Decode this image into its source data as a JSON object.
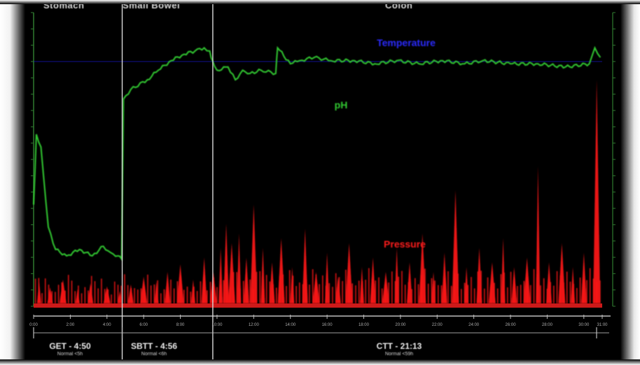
{
  "chart_data": {
    "type": "line",
    "title": "",
    "xlabel": "",
    "ylabel": "",
    "grid": false,
    "segments": [
      {
        "name": "Stomach",
        "duration_label": "GET - 4:50",
        "note": "Normal <5h"
      },
      {
        "name": "Small Bowel",
        "duration_label": "SBTT - 4:56",
        "note": "Normal <6h"
      },
      {
        "name": "Colon",
        "duration_label": "CTT - 21:13",
        "note": "Normal <59h"
      }
    ],
    "series": [
      {
        "name": "Temperature",
        "color": "#1a1aff",
        "values": [
          [
            0,
            37.0
          ],
          [
            5,
            37.0
          ],
          [
            10,
            37.0
          ],
          [
            20,
            37.0
          ],
          [
            30,
            37.0
          ],
          [
            31,
            37.0
          ]
        ]
      },
      {
        "name": "pH",
        "color": "#33cc33",
        "values": [
          [
            0.0,
            3.0
          ],
          [
            0.15,
            5.2
          ],
          [
            0.4,
            4.8
          ],
          [
            0.8,
            2.3
          ],
          [
            1.2,
            1.6
          ],
          [
            1.8,
            1.4
          ],
          [
            2.5,
            1.6
          ],
          [
            3.2,
            1.4
          ],
          [
            3.8,
            1.7
          ],
          [
            4.2,
            1.5
          ],
          [
            4.6,
            1.4
          ],
          [
            4.8,
            1.3
          ],
          [
            4.9,
            6.3
          ],
          [
            5.3,
            6.6
          ],
          [
            6.2,
            6.9
          ],
          [
            6.8,
            7.2
          ],
          [
            7.5,
            7.5
          ],
          [
            8.2,
            7.7
          ],
          [
            8.8,
            7.8
          ],
          [
            9.3,
            7.9
          ],
          [
            9.6,
            7.8
          ],
          [
            9.75,
            7.5
          ],
          [
            10.0,
            7.2
          ],
          [
            10.6,
            7.3
          ],
          [
            11.0,
            6.9
          ],
          [
            11.4,
            7.2
          ],
          [
            11.8,
            7.1
          ],
          [
            12.4,
            7.2
          ],
          [
            13.2,
            7.1
          ],
          [
            13.3,
            7.9
          ],
          [
            14.0,
            7.4
          ],
          [
            14.5,
            7.5
          ],
          [
            15.3,
            7.6
          ],
          [
            16.2,
            7.5
          ],
          [
            17.5,
            7.5
          ],
          [
            18.6,
            7.4
          ],
          [
            19.8,
            7.5
          ],
          [
            21.0,
            7.4
          ],
          [
            22.3,
            7.5
          ],
          [
            23.5,
            7.4
          ],
          [
            24.5,
            7.5
          ],
          [
            26.0,
            7.4
          ],
          [
            27.5,
            7.4
          ],
          [
            29.0,
            7.3
          ],
          [
            30.3,
            7.4
          ],
          [
            30.6,
            7.9
          ],
          [
            30.9,
            7.6
          ]
        ]
      },
      {
        "name": "Pressure",
        "color": "#ff1a1a",
        "spikes": [
          [
            0.3,
            20
          ],
          [
            0.9,
            14
          ],
          [
            1.6,
            22
          ],
          [
            2.4,
            12
          ],
          [
            3.1,
            18
          ],
          [
            4.0,
            15
          ],
          [
            4.7,
            10
          ],
          [
            5.3,
            17
          ],
          [
            6.0,
            25
          ],
          [
            6.7,
            20
          ],
          [
            7.3,
            30
          ],
          [
            8.0,
            38
          ],
          [
            8.7,
            22
          ],
          [
            9.3,
            45
          ],
          [
            9.8,
            30
          ],
          [
            10.2,
            55
          ],
          [
            10.5,
            80
          ],
          [
            10.8,
            60
          ],
          [
            11.2,
            70
          ],
          [
            11.6,
            45
          ],
          [
            12.0,
            100
          ],
          [
            12.5,
            55
          ],
          [
            13.0,
            40
          ],
          [
            13.5,
            65
          ],
          [
            14.1,
            35
          ],
          [
            14.8,
            75
          ],
          [
            15.4,
            30
          ],
          [
            16.0,
            50
          ],
          [
            16.6,
            25
          ],
          [
            17.2,
            60
          ],
          [
            17.9,
            35
          ],
          [
            18.5,
            45
          ],
          [
            19.2,
            30
          ],
          [
            19.8,
            55
          ],
          [
            20.5,
            40
          ],
          [
            21.2,
            70
          ],
          [
            21.8,
            30
          ],
          [
            22.4,
            50
          ],
          [
            23.0,
            115
          ],
          [
            23.6,
            35
          ],
          [
            24.3,
            55
          ],
          [
            25.0,
            40
          ],
          [
            25.6,
            65
          ],
          [
            26.2,
            35
          ],
          [
            26.9,
            45
          ],
          [
            27.5,
            140
          ],
          [
            28.1,
            40
          ],
          [
            28.8,
            60
          ],
          [
            29.4,
            35
          ],
          [
            30.0,
            50
          ],
          [
            30.7,
            230
          ]
        ]
      }
    ],
    "labels": {
      "temperature": "Temperature",
      "ph": "pH",
      "pressure": "Pressure"
    },
    "x_range_hours": [
      0,
      31
    ],
    "ph_range": [
      0,
      9
    ],
    "pressure_range": [
      0,
      300
    ],
    "boundaries_hours": [
      4.83,
      9.77
    ],
    "x_tick_labels": [
      "0:00",
      "2:00",
      "4:00",
      "6:00",
      "8:00",
      "10:00",
      "12:00",
      "14:00",
      "16:00",
      "18:00",
      "20:00",
      "22:00",
      "24:00",
      "26:00",
      "28:00",
      "30:00",
      "31:00"
    ]
  }
}
